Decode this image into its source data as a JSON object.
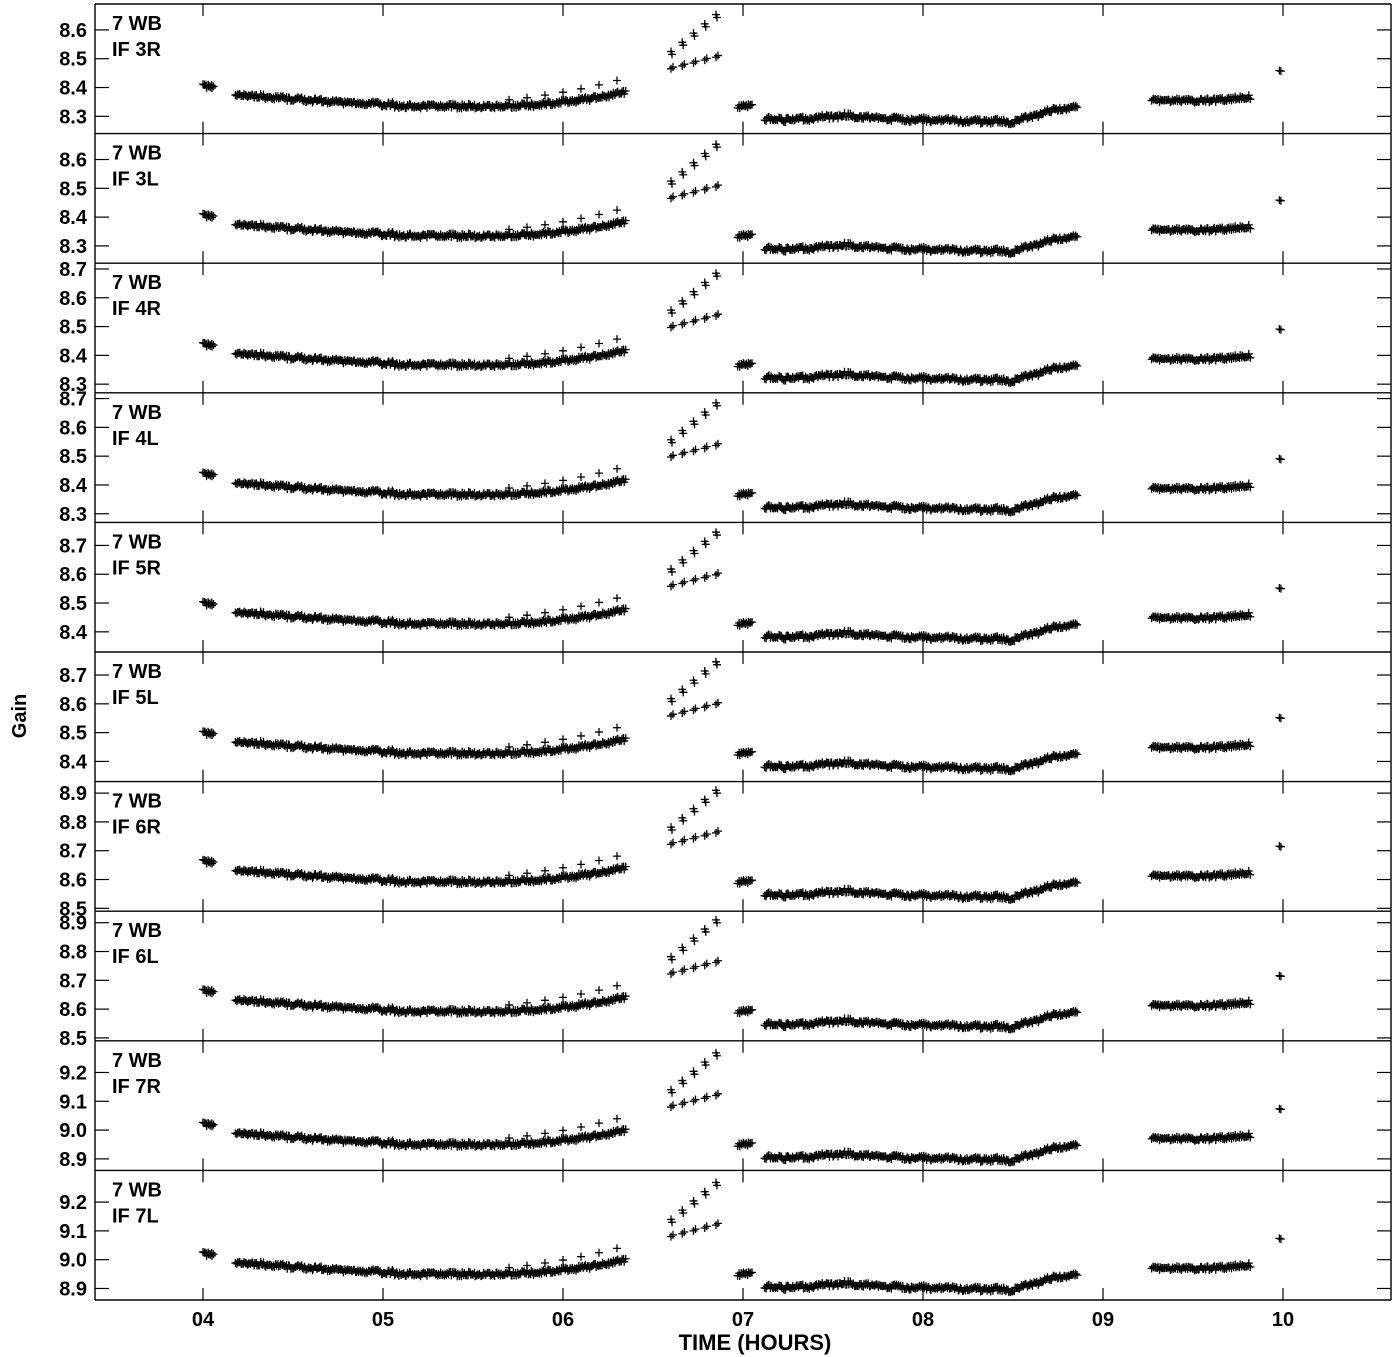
{
  "figure": {
    "ylabel": "Gain",
    "xlabel": "TIME (HOURS)",
    "x_tick_labels": [
      "04",
      "05",
      "06",
      "07",
      "08",
      "09",
      "10"
    ]
  },
  "chart_data": {
    "type": "scatter",
    "xlabel": "TIME (HOURS)",
    "ylabel": "Gain",
    "x_unit": "hours",
    "xlim": [
      3.4,
      10.6
    ],
    "x_ticks": [
      4,
      5,
      6,
      7,
      8,
      9,
      10
    ],
    "grid": false,
    "marker": "+",
    "series_template": {
      "segments": [
        {
          "x_start": 4.0,
          "x_end": 4.05,
          "y_base": 0.07
        },
        {
          "x_start": 4.18,
          "x_end": 6.35,
          "y_base_curve": "bowl",
          "y_start": 0.04,
          "y_min": 0.0,
          "y_end": 0.05
        },
        {
          "x_start": 6.6,
          "x_end": 6.85,
          "y_lower": [
            0.13,
            0.17
          ],
          "y_upper": [
            0.19,
            0.32
          ]
        },
        {
          "x_start": 6.97,
          "x_end": 7.05,
          "y_base": 0.0
        },
        {
          "x_start": 7.12,
          "x_end": 8.85,
          "y_base": -0.04
        },
        {
          "x_start": 9.27,
          "x_end": 9.82,
          "y_base": 0.02
        },
        {
          "x_start": 9.97,
          "x_end": 10.0,
          "y_base": 0.12
        }
      ]
    },
    "panels": [
      {
        "label_line1": "7 WB",
        "label_line2": "IF 3R",
        "y_ticks": [
          "8.3",
          "8.4",
          "8.5",
          "8.6"
        ],
        "ylim": [
          8.24,
          8.69
        ],
        "base": 8.335
      },
      {
        "label_line1": "7 WB",
        "label_line2": "IF 3L",
        "y_ticks": [
          "8.3",
          "8.4",
          "8.5",
          "8.6"
        ],
        "ylim": [
          8.24,
          8.69
        ],
        "base": 8.335
      },
      {
        "label_line1": "7 WB",
        "label_line2": "IF 4R",
        "y_ticks": [
          "8.3",
          "8.4",
          "8.5",
          "8.6",
          "8.7"
        ],
        "ylim": [
          8.27,
          8.72
        ],
        "base": 8.367
      },
      {
        "label_line1": "7 WB",
        "label_line2": "IF 4L",
        "y_ticks": [
          "8.3",
          "8.4",
          "8.5",
          "8.6",
          "8.7"
        ],
        "ylim": [
          8.27,
          8.72
        ],
        "base": 8.367
      },
      {
        "label_line1": "7 WB",
        "label_line2": "IF 5R",
        "y_ticks": [
          "8.4",
          "8.5",
          "8.6",
          "8.7"
        ],
        "ylim": [
          8.33,
          8.78
        ],
        "base": 8.428
      },
      {
        "label_line1": "7 WB",
        "label_line2": "IF 5L",
        "y_ticks": [
          "8.4",
          "8.5",
          "8.6",
          "8.7"
        ],
        "ylim": [
          8.33,
          8.78
        ],
        "base": 8.428
      },
      {
        "label_line1": "7 WB",
        "label_line2": "IF 6R",
        "y_ticks": [
          "8.5",
          "8.6",
          "8.7",
          "8.8",
          "8.9"
        ],
        "ylim": [
          8.49,
          8.94
        ],
        "base": 8.592
      },
      {
        "label_line1": "7 WB",
        "label_line2": "IF 6L",
        "y_ticks": [
          "8.5",
          "8.6",
          "8.7",
          "8.8",
          "8.9"
        ],
        "ylim": [
          8.49,
          8.94
        ],
        "base": 8.592
      },
      {
        "label_line1": "7 WB",
        "label_line2": "IF 7R",
        "y_ticks": [
          "8.9",
          "9.0",
          "9.1",
          "9.2"
        ],
        "ylim": [
          8.86,
          9.31
        ],
        "base": 8.95
      },
      {
        "label_line1": "7 WB",
        "label_line2": "IF 7L",
        "y_ticks": [
          "8.9",
          "9.0",
          "9.1",
          "9.2"
        ],
        "ylim": [
          8.86,
          9.31
        ],
        "base": 8.95
      }
    ]
  }
}
